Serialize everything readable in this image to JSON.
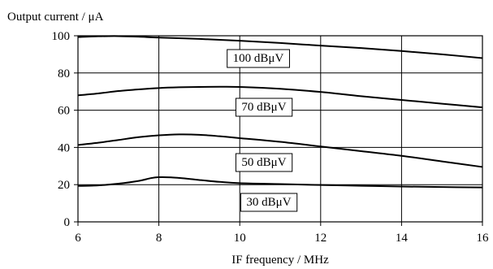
{
  "chart_data": {
    "type": "line",
    "title": "",
    "xlabel": "IF frequency / MHz",
    "ylabel": "Output current / μA",
    "xlim": [
      6,
      16
    ],
    "ylim": [
      0,
      100
    ],
    "xticks": [
      6,
      8,
      10,
      12,
      14,
      16
    ],
    "yticks": [
      0,
      20,
      40,
      60,
      80,
      100
    ],
    "grid": true,
    "legend": "inline-labels",
    "series": [
      {
        "name": "100 dBμV",
        "x": [
          6,
          6.5,
          7,
          7.5,
          8,
          9,
          10,
          11,
          12,
          13,
          14,
          15,
          16
        ],
        "y": [
          99.3,
          99.7,
          99.8,
          99.5,
          99.0,
          98.3,
          97.3,
          96.1,
          94.7,
          93.4,
          91.8,
          90.0,
          88.0
        ]
      },
      {
        "name": "70 dBμV",
        "x": [
          6,
          6.5,
          7,
          7.5,
          8,
          8.5,
          9,
          9.5,
          10,
          11,
          12,
          13,
          14,
          15,
          16
        ],
        "y": [
          68.0,
          69.0,
          70.3,
          71.2,
          71.9,
          72.3,
          72.5,
          72.6,
          72.5,
          71.5,
          69.8,
          67.5,
          65.5,
          63.5,
          61.5
        ]
      },
      {
        "name": "50 dBμV",
        "x": [
          6,
          6.5,
          7,
          7.5,
          8,
          8.5,
          9,
          9.5,
          10,
          11,
          12,
          13,
          14,
          15,
          16
        ],
        "y": [
          41.3,
          42.5,
          44.0,
          45.5,
          46.5,
          47.0,
          46.8,
          46.0,
          45.0,
          43.0,
          40.5,
          38.0,
          35.5,
          32.5,
          29.5
        ]
      },
      {
        "name": "30 dBμV",
        "x": [
          6,
          6.5,
          7,
          7.5,
          7.8,
          8,
          8.3,
          8.7,
          9,
          9.5,
          10,
          11,
          12,
          13,
          14,
          15,
          16
        ],
        "y": [
          19.3,
          19.6,
          20.5,
          22.0,
          23.5,
          24.0,
          23.9,
          23.2,
          22.5,
          21.5,
          20.8,
          20.3,
          19.8,
          19.4,
          19.0,
          18.7,
          18.5
        ]
      }
    ]
  }
}
